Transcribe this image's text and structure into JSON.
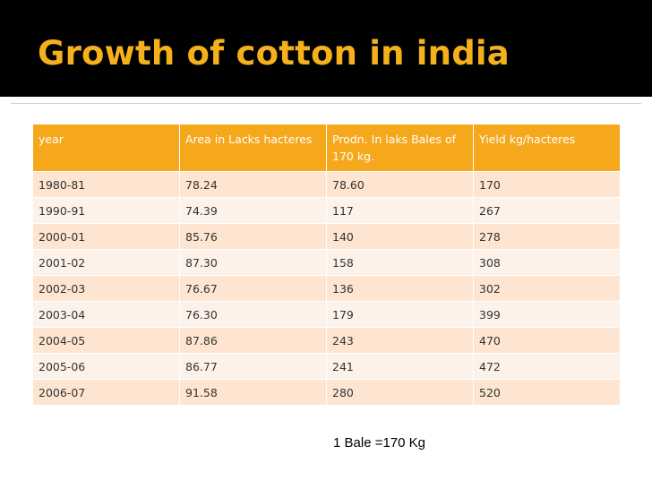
{
  "slide": {
    "title": "Growth of cotton in india",
    "note": "1 Bale =170 Kg"
  },
  "table": {
    "headers": [
      "year",
      "Area in Lacks hacteres",
      "Prodn. In laks Bales of 170 kg.",
      "Yield kg/hacteres"
    ],
    "rows": [
      [
        "1980-81",
        "78.24",
        "78.60",
        "170"
      ],
      [
        "1990-91",
        "74.39",
        "117",
        "267"
      ],
      [
        "2000-01",
        "85.76",
        "140",
        "278"
      ],
      [
        "2001-02",
        "87.30",
        "158",
        "308"
      ],
      [
        "2002-03",
        "76.67",
        "136",
        "302"
      ],
      [
        "2003-04",
        "76.30",
        "179",
        "399"
      ],
      [
        "2004-05",
        "87.86",
        "243",
        "470"
      ],
      [
        "2005-06",
        "86.77",
        "241",
        "472"
      ],
      [
        "2006-07",
        "91.58",
        "280",
        "520"
      ]
    ]
  },
  "colors": {
    "title_bar": "#000000",
    "title_text": "#f5b11c",
    "header_fill": "#f5a81c",
    "row_odd": "#fde5d1",
    "row_even": "#fdf2ea"
  }
}
